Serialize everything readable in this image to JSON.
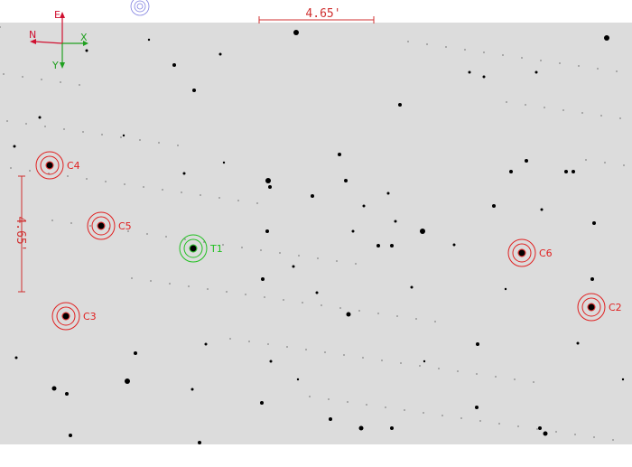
{
  "colors": {
    "comparison": "#e02020",
    "target": "#20c020",
    "north_east": "#d01030",
    "xy": "#20a020",
    "scale": "#d03030",
    "background": "#dcdcdc"
  },
  "scale_bar": {
    "horizontal_label": "4.65'",
    "vertical_label": "4.65'"
  },
  "compass": {
    "east": "E",
    "north": "N",
    "x": "X",
    "y": "Y"
  },
  "apertures": [
    {
      "label": "C4",
      "role": "comparison"
    },
    {
      "label": "C5",
      "role": "comparison"
    },
    {
      "label": "T1",
      "role": "target"
    },
    {
      "label": "C3",
      "role": "comparison"
    },
    {
      "label": "C6",
      "role": "comparison"
    },
    {
      "label": "C2",
      "role": "comparison"
    }
  ]
}
